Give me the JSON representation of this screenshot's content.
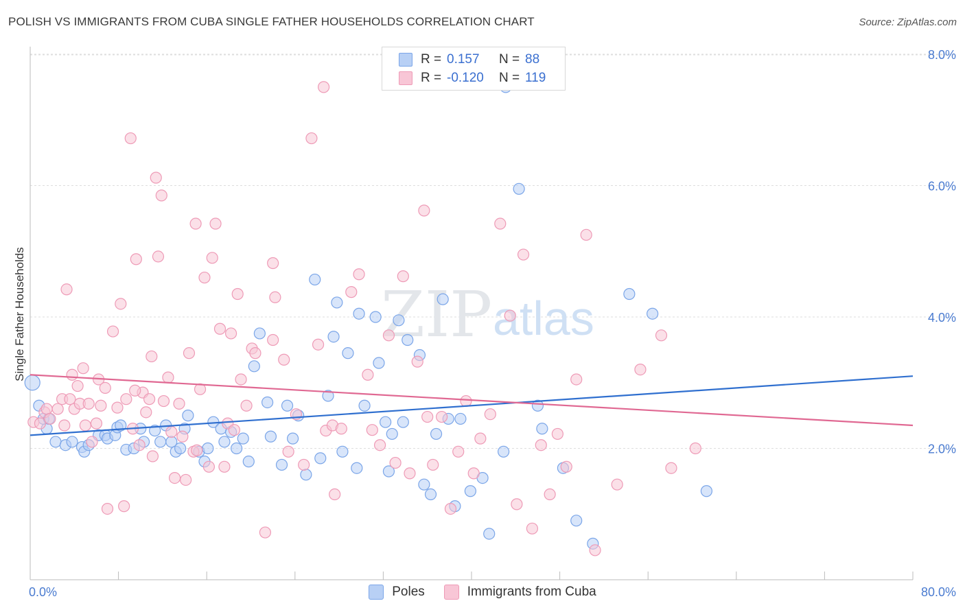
{
  "header": {
    "title": "POLISH VS IMMIGRANTS FROM CUBA SINGLE FATHER HOUSEHOLDS CORRELATION CHART",
    "source": "Source: ZipAtlas.com"
  },
  "watermark": {
    "zip": "ZIP",
    "atlas": "atlas"
  },
  "legend": {
    "r_label": "R =",
    "n_label": "N =",
    "rows": [
      {
        "r": "0.157",
        "n": "88",
        "fill": "#b8d0f5",
        "stroke": "#7aa5e8"
      },
      {
        "r": "-0.120",
        "n": "119",
        "fill": "#f8c6d6",
        "stroke": "#ee9ab6"
      }
    ]
  },
  "bottom_legend": [
    {
      "label": "Poles",
      "fill": "#b8d0f5",
      "stroke": "#7aa5e8"
    },
    {
      "label": "Immigrants from Cuba",
      "fill": "#f8c6d6",
      "stroke": "#ee9ab6"
    }
  ],
  "chart_data": {
    "type": "scatter",
    "title": "POLISH VS IMMIGRANTS FROM CUBA SINGLE FATHER HOUSEHOLDS CORRELATION CHART",
    "xlabel": "",
    "ylabel": "Single Father Households",
    "xlim": [
      0,
      80
    ],
    "ylim": [
      0,
      8.0
    ],
    "x_tick_labels": [
      "0.0%",
      "80.0%"
    ],
    "y_ticks": [
      2.0,
      4.0,
      6.0,
      8.0
    ],
    "y_tick_labels": [
      "2.0%",
      "4.0%",
      "6.0%",
      "8.0%"
    ],
    "grid": true,
    "series": [
      {
        "name": "Poles",
        "color": "#7aa5e8",
        "fill": "#b8d0f5",
        "trend_color": "#2f6fcf",
        "trend": [
          [
            0,
            2.2
          ],
          [
            80,
            3.1
          ]
        ],
        "points": [
          [
            0.2,
            3.0
          ],
          [
            0.8,
            2.65
          ],
          [
            1.5,
            2.3
          ],
          [
            1.2,
            2.45
          ],
          [
            2.3,
            2.1
          ],
          [
            3.2,
            2.05
          ],
          [
            3.8,
            2.1
          ],
          [
            4.7,
            2.02
          ],
          [
            4.9,
            1.95
          ],
          [
            5.3,
            2.05
          ],
          [
            6.2,
            2.2
          ],
          [
            6.8,
            2.2
          ],
          [
            7.0,
            2.15
          ],
          [
            7.7,
            2.2
          ],
          [
            7.9,
            2.32
          ],
          [
            8.2,
            2.35
          ],
          [
            8.7,
            1.98
          ],
          [
            9.4,
            2.0
          ],
          [
            10.0,
            2.3
          ],
          [
            10.3,
            2.1
          ],
          [
            11.3,
            2.27
          ],
          [
            11.8,
            2.1
          ],
          [
            12.3,
            2.35
          ],
          [
            12.8,
            2.1
          ],
          [
            13.2,
            1.95
          ],
          [
            13.6,
            2.0
          ],
          [
            14.0,
            2.3
          ],
          [
            14.3,
            2.5
          ],
          [
            15.3,
            1.95
          ],
          [
            15.8,
            1.8
          ],
          [
            16.1,
            2.0
          ],
          [
            16.6,
            2.4
          ],
          [
            17.3,
            2.3
          ],
          [
            17.6,
            2.1
          ],
          [
            18.2,
            2.25
          ],
          [
            18.7,
            2.0
          ],
          [
            19.3,
            2.15
          ],
          [
            19.8,
            1.8
          ],
          [
            20.3,
            3.25
          ],
          [
            20.8,
            3.75
          ],
          [
            21.5,
            2.7
          ],
          [
            21.8,
            2.18
          ],
          [
            22.8,
            1.75
          ],
          [
            23.3,
            2.65
          ],
          [
            23.8,
            2.15
          ],
          [
            24.3,
            2.5
          ],
          [
            25.0,
            1.6
          ],
          [
            25.8,
            4.57
          ],
          [
            26.3,
            1.85
          ],
          [
            27.0,
            2.8
          ],
          [
            27.5,
            3.7
          ],
          [
            27.8,
            4.22
          ],
          [
            28.3,
            1.95
          ],
          [
            28.8,
            3.45
          ],
          [
            29.6,
            1.7
          ],
          [
            29.8,
            4.05
          ],
          [
            30.3,
            2.65
          ],
          [
            31.3,
            4.0
          ],
          [
            31.6,
            3.3
          ],
          [
            32.2,
            2.4
          ],
          [
            32.5,
            1.65
          ],
          [
            32.8,
            2.22
          ],
          [
            33.4,
            3.95
          ],
          [
            33.8,
            2.4
          ],
          [
            34.2,
            3.65
          ],
          [
            35.3,
            3.42
          ],
          [
            35.7,
            1.45
          ],
          [
            36.3,
            1.3
          ],
          [
            36.8,
            2.22
          ],
          [
            37.4,
            4.27
          ],
          [
            37.9,
            2.45
          ],
          [
            38.5,
            1.12
          ],
          [
            39.0,
            2.45
          ],
          [
            39.9,
            1.35
          ],
          [
            41.0,
            1.55
          ],
          [
            41.6,
            0.7
          ],
          [
            42.9,
            1.95
          ],
          [
            43.1,
            7.5
          ],
          [
            44.3,
            5.95
          ],
          [
            46.0,
            2.65
          ],
          [
            46.4,
            2.3
          ],
          [
            48.3,
            1.7
          ],
          [
            49.5,
            0.9
          ],
          [
            51.0,
            0.55
          ],
          [
            54.3,
            4.35
          ],
          [
            56.4,
            4.05
          ],
          [
            61.3,
            1.35
          ],
          [
            1.7,
            2.45
          ]
        ]
      },
      {
        "name": "Immigrants from Cuba",
        "color": "#ee9ab6",
        "fill": "#f8c6d6",
        "trend_color": "#e06892",
        "trend": [
          [
            0,
            3.12
          ],
          [
            80,
            2.35
          ]
        ],
        "points": [
          [
            0.3,
            2.4
          ],
          [
            0.9,
            2.38
          ],
          [
            1.3,
            2.55
          ],
          [
            1.5,
            2.6
          ],
          [
            1.8,
            2.45
          ],
          [
            2.5,
            2.6
          ],
          [
            2.9,
            2.75
          ],
          [
            3.1,
            2.35
          ],
          [
            3.3,
            4.42
          ],
          [
            3.6,
            2.75
          ],
          [
            3.8,
            3.12
          ],
          [
            4.0,
            2.6
          ],
          [
            4.3,
            2.95
          ],
          [
            4.5,
            2.68
          ],
          [
            4.8,
            3.22
          ],
          [
            5.0,
            2.35
          ],
          [
            5.3,
            2.68
          ],
          [
            6.0,
            2.38
          ],
          [
            6.2,
            3.05
          ],
          [
            6.4,
            2.65
          ],
          [
            6.8,
            2.92
          ],
          [
            7.0,
            1.08
          ],
          [
            7.5,
            3.78
          ],
          [
            7.9,
            2.62
          ],
          [
            8.2,
            4.2
          ],
          [
            8.5,
            1.12
          ],
          [
            8.7,
            2.75
          ],
          [
            9.1,
            6.72
          ],
          [
            9.3,
            2.3
          ],
          [
            9.6,
            4.88
          ],
          [
            9.9,
            2.05
          ],
          [
            10.2,
            2.85
          ],
          [
            10.5,
            2.55
          ],
          [
            10.8,
            2.75
          ],
          [
            11.1,
            1.88
          ],
          [
            11.4,
            6.12
          ],
          [
            11.6,
            4.92
          ],
          [
            11.9,
            5.85
          ],
          [
            12.1,
            2.72
          ],
          [
            12.5,
            3.08
          ],
          [
            12.8,
            2.25
          ],
          [
            13.1,
            1.55
          ],
          [
            13.5,
            2.68
          ],
          [
            13.8,
            2.18
          ],
          [
            14.1,
            1.52
          ],
          [
            14.4,
            3.45
          ],
          [
            14.8,
            1.95
          ],
          [
            15.1,
            1.97
          ],
          [
            15.4,
            2.9
          ],
          [
            15.8,
            4.6
          ],
          [
            16.2,
            1.72
          ],
          [
            16.5,
            4.9
          ],
          [
            16.8,
            5.42
          ],
          [
            17.2,
            3.82
          ],
          [
            17.6,
            1.72
          ],
          [
            17.9,
            2.38
          ],
          [
            18.2,
            3.75
          ],
          [
            18.5,
            2.28
          ],
          [
            18.8,
            4.35
          ],
          [
            19.1,
            3.05
          ],
          [
            19.6,
            2.65
          ],
          [
            20.1,
            3.52
          ],
          [
            20.4,
            3.45
          ],
          [
            21.3,
            0.72
          ],
          [
            22.0,
            4.82
          ],
          [
            22.2,
            4.3
          ],
          [
            23.0,
            3.35
          ],
          [
            23.4,
            1.95
          ],
          [
            24.1,
            2.52
          ],
          [
            24.8,
            1.75
          ],
          [
            25.5,
            6.72
          ],
          [
            26.1,
            3.58
          ],
          [
            26.8,
            2.27
          ],
          [
            27.4,
            2.35
          ],
          [
            27.6,
            1.3
          ],
          [
            28.2,
            2.3
          ],
          [
            29.1,
            4.38
          ],
          [
            29.8,
            4.65
          ],
          [
            30.6,
            3.12
          ],
          [
            31.0,
            2.28
          ],
          [
            31.7,
            2.05
          ],
          [
            32.5,
            3.72
          ],
          [
            33.1,
            1.78
          ],
          [
            33.8,
            4.62
          ],
          [
            34.4,
            1.62
          ],
          [
            35.1,
            3.32
          ],
          [
            35.7,
            5.62
          ],
          [
            36.5,
            1.75
          ],
          [
            37.3,
            2.48
          ],
          [
            38.1,
            1.08
          ],
          [
            38.8,
            1.95
          ],
          [
            39.5,
            2.72
          ],
          [
            40.2,
            1.62
          ],
          [
            40.8,
            2.15
          ],
          [
            41.7,
            2.52
          ],
          [
            42.6,
            5.42
          ],
          [
            43.5,
            4.02
          ],
          [
            44.1,
            1.15
          ],
          [
            44.7,
            4.95
          ],
          [
            45.5,
            0.78
          ],
          [
            46.3,
            2.05
          ],
          [
            47.1,
            1.3
          ],
          [
            47.8,
            2.22
          ],
          [
            48.6,
            1.72
          ],
          [
            49.5,
            3.05
          ],
          [
            50.4,
            5.25
          ],
          [
            51.2,
            0.45
          ],
          [
            53.2,
            1.45
          ],
          [
            55.3,
            3.2
          ],
          [
            57.2,
            3.72
          ],
          [
            58.1,
            1.7
          ],
          [
            60.3,
            2.0
          ],
          [
            26.6,
            7.5
          ],
          [
            22.0,
            3.65
          ],
          [
            15.0,
            5.42
          ],
          [
            11.0,
            3.4
          ],
          [
            5.6,
            2.1
          ],
          [
            36.0,
            2.48
          ],
          [
            9.5,
            2.88
          ]
        ]
      }
    ]
  }
}
